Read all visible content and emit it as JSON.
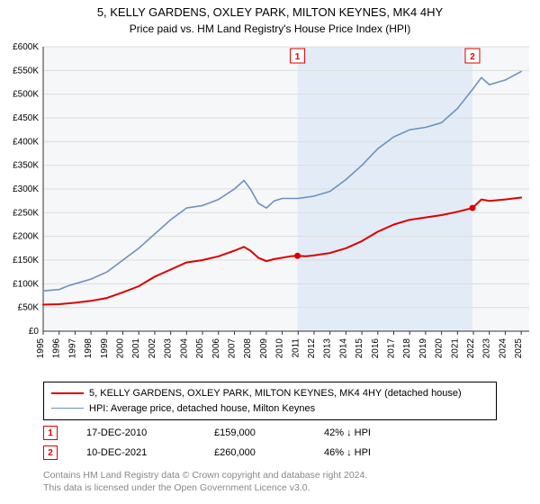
{
  "title": "5, KELLY GARDENS, OXLEY PARK, MILTON KEYNES, MK4 4HY",
  "subtitle": "Price paid vs. HM Land Registry's House Price Index (HPI)",
  "chart": {
    "type": "line",
    "background_color": "#ffffff",
    "plot_background": "#f6f7f8",
    "grid_color": "#dcdcdc",
    "axis_color": "#333333",
    "tick_fontsize": 10,
    "ylim": [
      0,
      600000
    ],
    "ytick_step": 50000,
    "ytick_labels": [
      "£0",
      "£50K",
      "£100K",
      "£150K",
      "£200K",
      "£250K",
      "£300K",
      "£350K",
      "£400K",
      "£450K",
      "£500K",
      "£550K",
      "£600K"
    ],
    "xlim": [
      1995,
      2025.5
    ],
    "xticks": [
      1995,
      1996,
      1997,
      1998,
      1999,
      2000,
      2001,
      2002,
      2003,
      2004,
      2005,
      2006,
      2007,
      2008,
      2009,
      2010,
      2011,
      2012,
      2013,
      2014,
      2015,
      2016,
      2017,
      2018,
      2019,
      2020,
      2021,
      2022,
      2023,
      2024,
      2025
    ],
    "shade_band": {
      "xstart": 2010.96,
      "xend": 2021.94,
      "color": "#d8e6f5"
    },
    "series": [
      {
        "name": "property",
        "color": "#dd0000",
        "line_width": 2,
        "label": "5, KELLY GARDENS, OXLEY PARK, MILTON KEYNES, MK4 4HY (detached house)",
        "points": [
          [
            1995,
            56000
          ],
          [
            1996,
            57000
          ],
          [
            1997,
            60000
          ],
          [
            1998,
            64000
          ],
          [
            1999,
            70000
          ],
          [
            2000,
            82000
          ],
          [
            2001,
            95000
          ],
          [
            2002,
            115000
          ],
          [
            2003,
            130000
          ],
          [
            2004,
            145000
          ],
          [
            2005,
            150000
          ],
          [
            2006,
            158000
          ],
          [
            2007,
            170000
          ],
          [
            2007.6,
            178000
          ],
          [
            2008,
            170000
          ],
          [
            2008.5,
            155000
          ],
          [
            2009,
            148000
          ],
          [
            2009.5,
            152000
          ],
          [
            2010,
            155000
          ],
          [
            2010.5,
            158000
          ],
          [
            2010.96,
            159000
          ],
          [
            2011.5,
            158000
          ],
          [
            2012,
            160000
          ],
          [
            2013,
            165000
          ],
          [
            2014,
            175000
          ],
          [
            2015,
            190000
          ],
          [
            2016,
            210000
          ],
          [
            2017,
            225000
          ],
          [
            2018,
            235000
          ],
          [
            2019,
            240000
          ],
          [
            2020,
            245000
          ],
          [
            2021,
            252000
          ],
          [
            2021.94,
            260000
          ],
          [
            2022.5,
            278000
          ],
          [
            2023,
            275000
          ],
          [
            2024,
            278000
          ],
          [
            2025,
            282000
          ]
        ]
      },
      {
        "name": "hpi",
        "color": "#6d91c2",
        "line_width": 1.6,
        "label": "HPI: Average price, detached house, Milton Keynes",
        "points": [
          [
            1995,
            85000
          ],
          [
            1996,
            88000
          ],
          [
            1996.5,
            95000
          ],
          [
            1997,
            100000
          ],
          [
            1998,
            110000
          ],
          [
            1999,
            125000
          ],
          [
            2000,
            150000
          ],
          [
            2001,
            175000
          ],
          [
            2002,
            205000
          ],
          [
            2003,
            235000
          ],
          [
            2004,
            260000
          ],
          [
            2005,
            265000
          ],
          [
            2006,
            278000
          ],
          [
            2007,
            300000
          ],
          [
            2007.6,
            318000
          ],
          [
            2008,
            300000
          ],
          [
            2008.5,
            270000
          ],
          [
            2009,
            260000
          ],
          [
            2009.5,
            275000
          ],
          [
            2010,
            280000
          ],
          [
            2011,
            280000
          ],
          [
            2012,
            285000
          ],
          [
            2013,
            295000
          ],
          [
            2014,
            320000
          ],
          [
            2015,
            350000
          ],
          [
            2016,
            385000
          ],
          [
            2017,
            410000
          ],
          [
            2018,
            425000
          ],
          [
            2019,
            430000
          ],
          [
            2020,
            440000
          ],
          [
            2021,
            470000
          ],
          [
            2021.94,
            510000
          ],
          [
            2022.5,
            535000
          ],
          [
            2023,
            520000
          ],
          [
            2024,
            530000
          ],
          [
            2025,
            548000
          ]
        ]
      }
    ],
    "sale_markers": [
      {
        "n": 1,
        "x": 2010.96,
        "y": 159000
      },
      {
        "n": 2,
        "x": 2021.94,
        "y": 260000
      }
    ],
    "marker_box_color": "#dd0000",
    "marker_dot_color": "#dd0000",
    "marker_dot_radius": 3.5
  },
  "legend": {
    "rows": [
      {
        "color": "#dd0000",
        "width": 2,
        "label": "5, KELLY GARDENS, OXLEY PARK, MILTON KEYNES, MK4 4HY (detached house)"
      },
      {
        "color": "#6d91c2",
        "width": 1.6,
        "label": "HPI: Average price, detached house, Milton Keynes"
      }
    ]
  },
  "sales_table": [
    {
      "n": "1",
      "date": "17-DEC-2010",
      "price": "£159,000",
      "pct": "42% ↓ HPI"
    },
    {
      "n": "2",
      "date": "10-DEC-2021",
      "price": "£260,000",
      "pct": "46% ↓ HPI"
    }
  ],
  "footer_line1": "Contains HM Land Registry data © Crown copyright and database right 2024.",
  "footer_line2": "This data is licensed under the Open Government Licence v3.0."
}
